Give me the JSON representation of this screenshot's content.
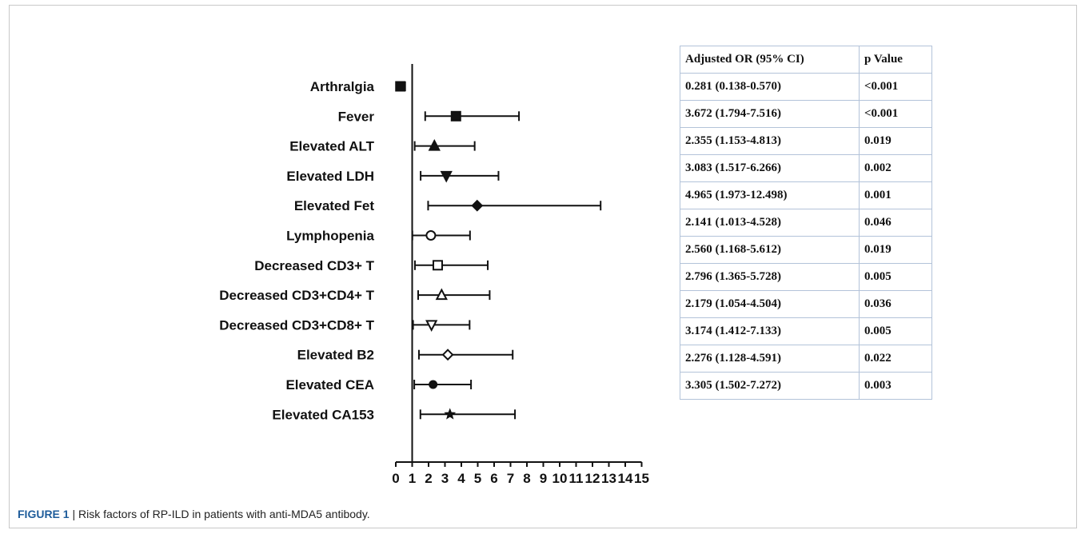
{
  "chart_data": {
    "type": "forest",
    "categories": [
      "Arthralgia",
      "Fever",
      "Elevated ALT",
      "Elevated LDH",
      "Elevated Fet",
      "Lymphopenia",
      "Decreased CD3+ T",
      "Decreased CD3+CD4+ T",
      "Decreased CD3+CD8+ T",
      "Elevated B2",
      "Elevated CEA",
      "Elevated CA153"
    ],
    "or": [
      0.281,
      3.672,
      2.355,
      3.083,
      4.965,
      2.141,
      2.56,
      2.796,
      2.179,
      3.174,
      2.276,
      3.305
    ],
    "ci_low": [
      0.138,
      1.794,
      1.153,
      1.517,
      1.973,
      1.013,
      1.168,
      1.365,
      1.054,
      1.412,
      1.128,
      1.502
    ],
    "ci_high": [
      0.57,
      7.516,
      4.813,
      6.266,
      12.498,
      4.528,
      5.612,
      5.728,
      4.504,
      7.133,
      4.591,
      7.272
    ],
    "markers": [
      "filled-square",
      "filled-square",
      "filled-triangle-up",
      "filled-triangle-down",
      "filled-diamond",
      "open-circle",
      "open-square",
      "open-triangle-up",
      "open-triangle-down",
      "open-diamond",
      "filled-circle",
      "filled-star"
    ],
    "xlim": [
      0,
      15
    ],
    "xticks": [
      "0",
      "1",
      "2",
      "3",
      "4",
      "5",
      "6",
      "7",
      "8",
      "9",
      "10",
      "11",
      "12",
      "13",
      "14",
      "15"
    ],
    "reference_line": 1,
    "table": {
      "headers": [
        "Adjusted OR (95% CI)",
        "p Value"
      ],
      "rows": [
        [
          "0.281 (0.138-0.570)",
          "<0.001"
        ],
        [
          "3.672 (1.794-7.516)",
          "<0.001"
        ],
        [
          "2.355 (1.153-4.813)",
          "0.019"
        ],
        [
          "3.083 (1.517-6.266)",
          "0.002"
        ],
        [
          "4.965 (1.973-12.498)",
          "0.001"
        ],
        [
          "2.141 (1.013-4.528)",
          "0.046"
        ],
        [
          "2.560 (1.168-5.612)",
          "0.019"
        ],
        [
          "2.796 (1.365-5.728)",
          "0.005"
        ],
        [
          "2.179 (1.054-4.504)",
          "0.036"
        ],
        [
          "3.174 (1.412-7.133)",
          "0.005"
        ],
        [
          "2.276 (1.128-4.591)",
          "0.022"
        ],
        [
          "3.305 (1.502-7.272)",
          "0.003"
        ]
      ]
    }
  },
  "caption": {
    "label": "FIGURE 1",
    "separator": " | ",
    "text": "Risk factors of RP-ILD in patients with anti-MDA5 antibody."
  }
}
